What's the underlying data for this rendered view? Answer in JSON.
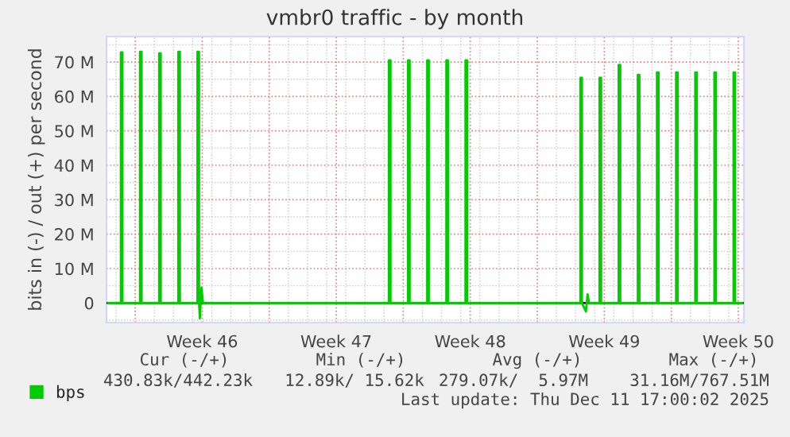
{
  "chart_data": {
    "type": "line",
    "title": "vmbr0 traffic - by month",
    "ylabel": "bits in (-) / out (+) per second",
    "x": [
      "2025-11-08T14:00",
      "2025-11-09T06:00",
      "2025-11-09T06:00",
      "2025-11-09T08:00",
      "2025-11-09T08:00",
      "2025-11-10T06:00",
      "2025-11-10T06:00",
      "2025-11-10T08:00",
      "2025-11-10T08:00",
      "2025-11-11T06:00",
      "2025-11-11T06:00",
      "2025-11-11T08:00",
      "2025-11-11T08:00",
      "2025-11-12T06:00",
      "2025-11-12T06:00",
      "2025-11-12T08:00",
      "2025-11-12T08:00",
      "2025-11-13T06:00",
      "2025-11-13T06:00",
      "2025-11-13T08:00",
      "2025-11-13T08:00",
      "2025-11-13T09:00",
      "2025-11-13T11:00",
      "2025-11-13T13:00",
      "2025-11-23T06:00",
      "2025-11-23T06:00",
      "2025-11-23T08:00",
      "2025-11-23T08:00",
      "2025-11-24T06:00",
      "2025-11-24T06:00",
      "2025-11-24T08:00",
      "2025-11-24T08:00",
      "2025-11-25T06:00",
      "2025-11-25T06:00",
      "2025-11-25T08:00",
      "2025-11-25T08:00",
      "2025-11-26T06:00",
      "2025-11-26T06:00",
      "2025-11-26T08:00",
      "2025-11-26T08:00",
      "2025-11-27T06:00",
      "2025-11-27T06:00",
      "2025-11-27T08:00",
      "2025-11-27T08:00",
      "2025-12-03T06:00",
      "2025-12-03T06:00",
      "2025-12-03T08:00",
      "2025-12-03T08:00",
      "2025-12-03T13:00",
      "2025-12-03T15:00",
      "2025-12-03T17:00",
      "2025-12-04T06:00",
      "2025-12-04T06:00",
      "2025-12-04T08:00",
      "2025-12-04T08:00",
      "2025-12-05T06:00",
      "2025-12-05T06:00",
      "2025-12-05T08:00",
      "2025-12-05T08:00",
      "2025-12-06T06:00",
      "2025-12-06T06:00",
      "2025-12-06T08:00",
      "2025-12-06T08:00",
      "2025-12-07T06:00",
      "2025-12-07T06:00",
      "2025-12-07T08:00",
      "2025-12-07T08:00",
      "2025-12-08T06:00",
      "2025-12-08T06:00",
      "2025-12-08T08:00",
      "2025-12-08T08:00",
      "2025-12-09T06:00",
      "2025-12-09T06:00",
      "2025-12-09T08:00",
      "2025-12-09T08:00",
      "2025-12-10T06:00",
      "2025-12-10T06:00",
      "2025-12-10T08:00",
      "2025-12-10T08:00",
      "2025-12-11T06:00",
      "2025-12-11T06:00",
      "2025-12-11T08:00",
      "2025-12-11T08:00",
      "2025-12-11T17:00"
    ],
    "series": [
      {
        "name": "bps",
        "color": "#00cc00",
        "values": [
          0,
          0,
          72.8,
          72.8,
          0,
          0,
          73,
          73,
          0,
          0,
          72.5,
          72.5,
          0,
          0,
          73,
          73,
          0,
          0,
          73,
          73,
          0,
          -4.5,
          4.5,
          0,
          0,
          70.5,
          70.5,
          0,
          0,
          70.5,
          70.5,
          0,
          0,
          70.5,
          70.5,
          0,
          0,
          70.5,
          70.5,
          0,
          0,
          70.5,
          70.5,
          0,
          0,
          65.4,
          65.4,
          0,
          -2.5,
          2.5,
          0,
          0,
          65.4,
          65.4,
          0,
          0,
          69.2,
          69.2,
          0,
          0,
          66.3,
          66.3,
          0,
          0,
          67,
          67,
          0,
          0,
          67,
          67,
          0,
          0,
          67,
          67,
          0,
          0,
          67,
          67,
          0,
          0,
          67,
          67,
          0,
          0
        ]
      }
    ],
    "xlim": [
      "2025-11-08T12:00",
      "2025-12-11T19:00"
    ],
    "xticks": [
      {
        "value": "2025-11-10",
        "label": null
      },
      {
        "value": "2025-11-13T12:00",
        "label": "Week 46"
      },
      {
        "value": "2025-11-17",
        "label": null
      },
      {
        "value": "2025-11-20T12:00",
        "label": "Week 47"
      },
      {
        "value": "2025-11-24",
        "label": null
      },
      {
        "value": "2025-11-27T12:00",
        "label": "Week 48"
      },
      {
        "value": "2025-12-01",
        "label": null
      },
      {
        "value": "2025-12-04T12:00",
        "label": "Week 49"
      },
      {
        "value": "2025-12-08",
        "label": null
      },
      {
        "value": "2025-12-11T12:00",
        "label": "Week 50"
      }
    ],
    "ylim": [
      -5.7,
      77.4
    ],
    "yticks": [
      {
        "value": 0,
        "label": "0"
      },
      {
        "value": 10,
        "label": "10 M"
      },
      {
        "value": 20,
        "label": "20 M"
      },
      {
        "value": 30,
        "label": "30 M"
      },
      {
        "value": 40,
        "label": "40 M"
      },
      {
        "value": 50,
        "label": "50 M"
      },
      {
        "value": 60,
        "label": "60 M"
      },
      {
        "value": 70,
        "label": "70 M"
      }
    ],
    "ref_lines": [
      {
        "axis": "y",
        "value": 0,
        "color": "#000000"
      }
    ],
    "grid": true,
    "legend": "bottom",
    "marker": "none",
    "line_style": "solid",
    "annotations": [
      "Cur (-/+)",
      "Min (-/+)",
      "Avg (-/+)",
      "Max (-/+)",
      "430.83k/442.23k",
      "12.89k/ 15.62k",
      "279.07k/  5.97M",
      "31.16M/767.51M",
      "Last update: Thu Dec 11 17:00:02 2025"
    ]
  }
}
